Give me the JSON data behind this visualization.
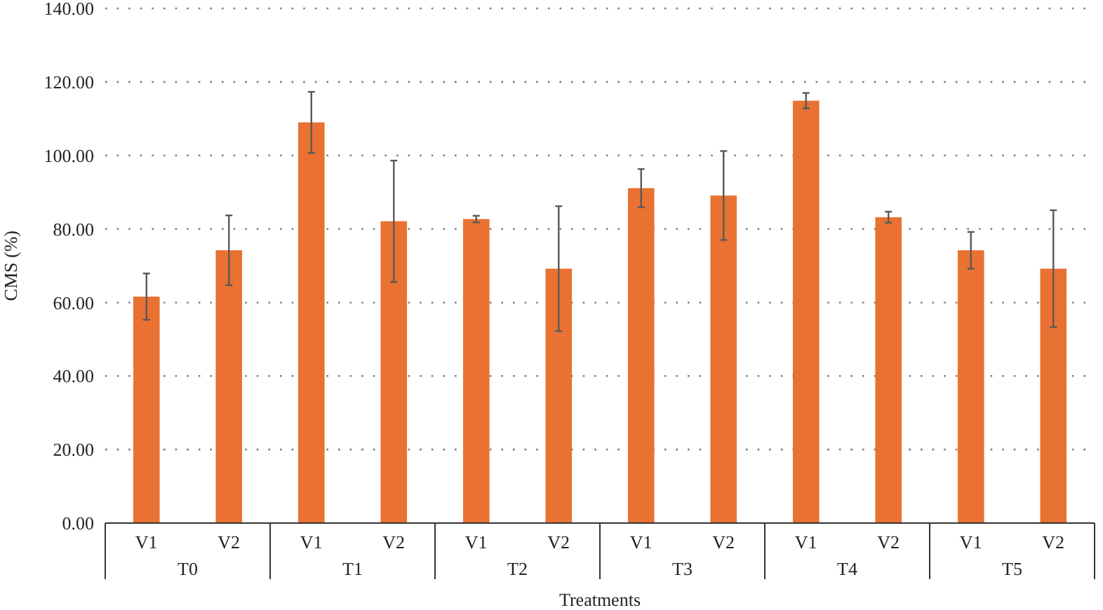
{
  "chart_data": {
    "type": "bar",
    "xlabel": "Treatments",
    "ylabel": "CMS (%)",
    "categories": [
      "V1",
      "V2",
      "V1",
      "V2",
      "V1",
      "V2",
      "V1",
      "V2",
      "V1",
      "V2",
      "V1",
      "V2"
    ],
    "annotations": [
      "T0",
      "T1",
      "T2",
      "T3",
      "T4",
      "T5"
    ],
    "series": [
      {
        "color": "#e97132",
        "values": [
          61.6,
          74.2,
          109.0,
          82.1,
          82.7,
          69.2,
          91.1,
          89.1,
          114.9,
          83.2,
          74.2,
          69.2
        ],
        "errors": [
          6.3,
          9.5,
          8.3,
          16.5,
          0.9,
          17.0,
          5.2,
          12.1,
          2.1,
          1.5,
          5.0,
          15.9
        ]
      }
    ],
    "ylim": [
      0,
      140
    ],
    "yticks": [
      {
        "value": 0,
        "label": "0.00"
      },
      {
        "value": 20,
        "label": "20.00"
      },
      {
        "value": 40,
        "label": "40.00"
      },
      {
        "value": 60,
        "label": "60.00"
      },
      {
        "value": 80,
        "label": "80.00"
      },
      {
        "value": 100,
        "label": "100.00"
      },
      {
        "value": 120,
        "label": "120.00"
      },
      {
        "value": 140,
        "label": "140.00"
      }
    ],
    "grid": "y"
  }
}
